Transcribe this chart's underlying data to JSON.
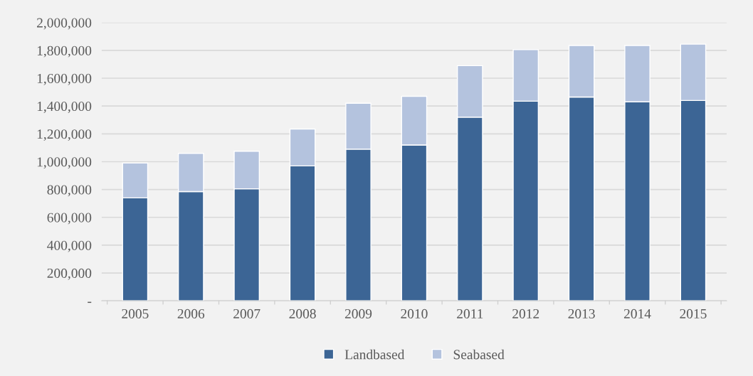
{
  "chart_data": {
    "type": "bar",
    "stacked": true,
    "categories": [
      "2005",
      "2006",
      "2007",
      "2008",
      "2009",
      "2010",
      "2011",
      "2012",
      "2013",
      "2014",
      "2015"
    ],
    "series": [
      {
        "name": "Landbased",
        "color": "#3c6595",
        "values": [
          740000,
          785000,
          805000,
          970000,
          1090000,
          1120000,
          1320000,
          1435000,
          1465000,
          1430000,
          1440000
        ]
      },
      {
        "name": "Seabased",
        "color": "#b4c3de",
        "values": [
          250000,
          275000,
          270000,
          265000,
          330000,
          350000,
          370000,
          370000,
          370000,
          405000,
          405000
        ]
      }
    ],
    "ylim": [
      0,
      2000000
    ],
    "yticks": [
      {
        "value": 0,
        "label": "-"
      },
      {
        "value": 200000,
        "label": "200,000"
      },
      {
        "value": 400000,
        "label": "400,000"
      },
      {
        "value": 600000,
        "label": "600,000"
      },
      {
        "value": 800000,
        "label": "800,000"
      },
      {
        "value": 1000000,
        "label": "1,000,000"
      },
      {
        "value": 1200000,
        "label": "1,200,000"
      },
      {
        "value": 1400000,
        "label": "1,400,000"
      },
      {
        "value": 1600000,
        "label": "1,600,000"
      },
      {
        "value": 1800000,
        "label": "1,800,000"
      },
      {
        "value": 2000000,
        "label": "2,000,000"
      }
    ],
    "grid": "y",
    "legend": "bottom"
  }
}
